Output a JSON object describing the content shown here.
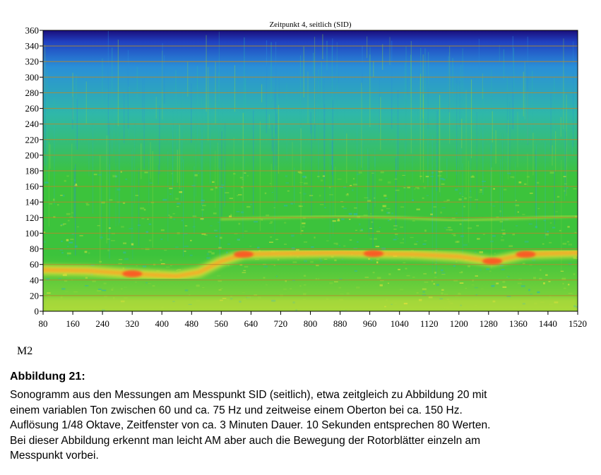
{
  "chart_data": {
    "type": "heatmap",
    "title": "Zeitpunkt 4, seitlich (SID)",
    "xlabel": "",
    "ylabel": "",
    "xlim": [
      80,
      1520
    ],
    "ylim": [
      0,
      360
    ],
    "x_ticks": [
      80,
      160,
      240,
      320,
      400,
      480,
      560,
      640,
      720,
      800,
      880,
      960,
      1040,
      1120,
      1200,
      1280,
      1360,
      1440,
      1520
    ],
    "y_ticks": [
      0,
      20,
      40,
      60,
      80,
      100,
      120,
      140,
      160,
      180,
      200,
      220,
      240,
      260,
      280,
      300,
      320,
      340,
      360
    ],
    "grid": true,
    "colormap": [
      "#1a0d7a",
      "#2040c0",
      "#2a8fd8",
      "#2fb8a8",
      "#3cc33c",
      "#8ed63a",
      "#e6e23a",
      "#ffa020",
      "#ff4020"
    ],
    "tonal_band": [
      {
        "x": 80,
        "y": 53
      },
      {
        "x": 200,
        "y": 52
      },
      {
        "x": 320,
        "y": 48
      },
      {
        "x": 440,
        "y": 45
      },
      {
        "x": 500,
        "y": 50
      },
      {
        "x": 560,
        "y": 64
      },
      {
        "x": 620,
        "y": 73
      },
      {
        "x": 720,
        "y": 74
      },
      {
        "x": 880,
        "y": 75
      },
      {
        "x": 970,
        "y": 74
      },
      {
        "x": 1080,
        "y": 73
      },
      {
        "x": 1200,
        "y": 70
      },
      {
        "x": 1290,
        "y": 64
      },
      {
        "x": 1380,
        "y": 73
      },
      {
        "x": 1520,
        "y": 75
      }
    ],
    "overtone_band": [
      {
        "x": 560,
        "y": 118
      },
      {
        "x": 720,
        "y": 120
      },
      {
        "x": 880,
        "y": 122
      },
      {
        "x": 1040,
        "y": 120
      },
      {
        "x": 1200,
        "y": 116
      },
      {
        "x": 1520,
        "y": 122
      }
    ]
  },
  "panel_label": "M2",
  "caption": {
    "heading": "Abbildung 21:",
    "lines": [
      "Sonogramm aus den Messungen am Messpunkt SID (seitlich), etwa zeitgleich zu Abbildung 20 mit",
      "einem variablen Ton zwischen 60 und ca. 75 Hz und zeitweise einem Oberton bei ca. 150 Hz.",
      "Auflösung 1/48 Oktave, Zeitfenster von ca. 3 Minuten Dauer. 10 Sekunden entsprechen 80 Werten.",
      "Bei dieser Abbildung erkennt man leicht AM aber auch die Bewegung der Rotorblätter einzeln am",
      "Messpunkt vorbei."
    ]
  }
}
